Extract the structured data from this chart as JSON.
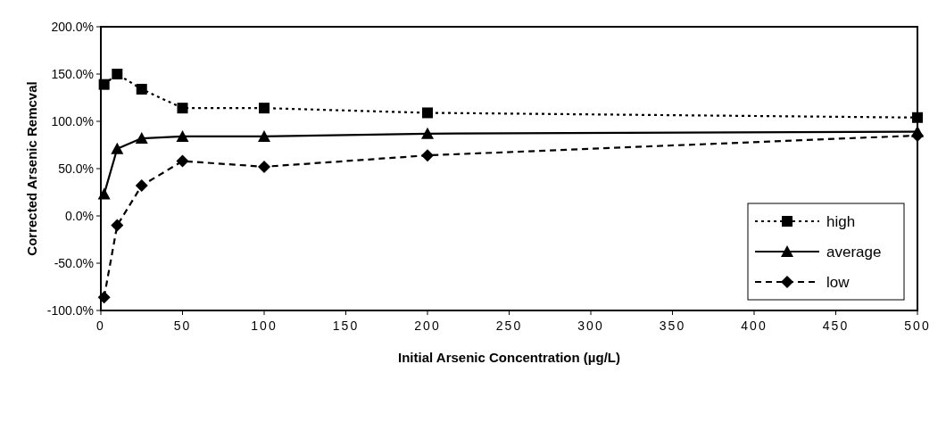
{
  "chart_data": {
    "type": "line",
    "xlabel": "Initial  Arsenic  Concentration  (µg/L)",
    "ylabel": "Corrected Arsenic Remcval",
    "x": [
      2,
      10,
      25,
      50,
      100,
      200,
      500
    ],
    "series": [
      {
        "name": "high",
        "color": "#000000",
        "marker": "square",
        "line_style": "dotted",
        "values": [
          139,
          150,
          134,
          114,
          114,
          109,
          104
        ]
      },
      {
        "name": "average",
        "color": "#000000",
        "marker": "triangle",
        "line_style": "solid",
        "values": [
          23,
          71,
          82,
          84,
          84,
          87,
          89
        ]
      },
      {
        "name": "low",
        "color": "#000000",
        "marker": "diamond",
        "line_style": "dashed",
        "values": [
          -86,
          -10,
          32,
          58,
          52,
          64,
          85
        ]
      }
    ],
    "xlim": [
      0,
      500
    ],
    "xticks": [
      0,
      50,
      100,
      150,
      200,
      250,
      300,
      350,
      400,
      450,
      500
    ],
    "ylim": [
      -100,
      200
    ],
    "yticks": [
      {
        "value": -100,
        "label": "-100.0%"
      },
      {
        "value": -50,
        "label": "-50.0%"
      },
      {
        "value": 0,
        "label": "0.0%"
      },
      {
        "value": 50,
        "label": "50.0%"
      },
      {
        "value": 100,
        "label": "100.0%"
      },
      {
        "value": 150,
        "label": "150.0%"
      },
      {
        "value": 200,
        "label": "200.0%"
      }
    ],
    "legend": "bottom right"
  }
}
